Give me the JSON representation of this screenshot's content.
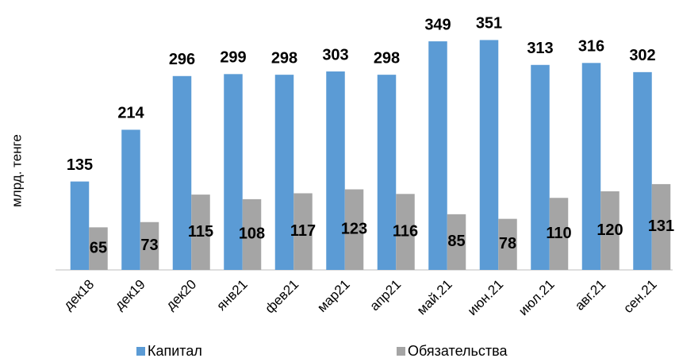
{
  "chart_data": {
    "type": "bar",
    "y_label": "млрд. тенге",
    "categories": [
      "дек18",
      "дек19",
      "дек20",
      "янв21",
      "фев21",
      "мар21",
      "апр21",
      "май.21",
      "июн.21",
      "июл.21",
      "авг.21",
      "сен.21"
    ],
    "series": [
      {
        "name": "Капитал",
        "color": "#5b9bd5",
        "values": [
          135,
          214,
          296,
          299,
          298,
          303,
          298,
          349,
          351,
          313,
          316,
          302
        ]
      },
      {
        "name": "Обязательства",
        "color": "#a5a5a5",
        "values": [
          65,
          73,
          115,
          108,
          117,
          123,
          116,
          85,
          78,
          110,
          120,
          131
        ]
      }
    ],
    "ylim": [
      0,
      400
    ],
    "legend": "bottom"
  }
}
